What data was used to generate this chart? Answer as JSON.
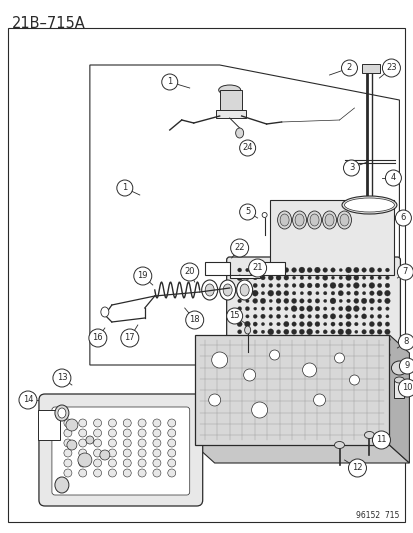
{
  "title": "21B–715A",
  "catalog_number": "96152  715",
  "bg_color": "#f2f2f2",
  "white": "#ffffff",
  "lc": "#2a2a2a",
  "gray1": "#c8c8c8",
  "gray2": "#d8d8d8",
  "gray3": "#e8e8e8",
  "gray4": "#b0b0b0",
  "fig_w": 4.14,
  "fig_h": 5.33,
  "dpi": 100,
  "label_fs": 6.0,
  "title_fs": 10.5,
  "cat_fs": 5.5
}
